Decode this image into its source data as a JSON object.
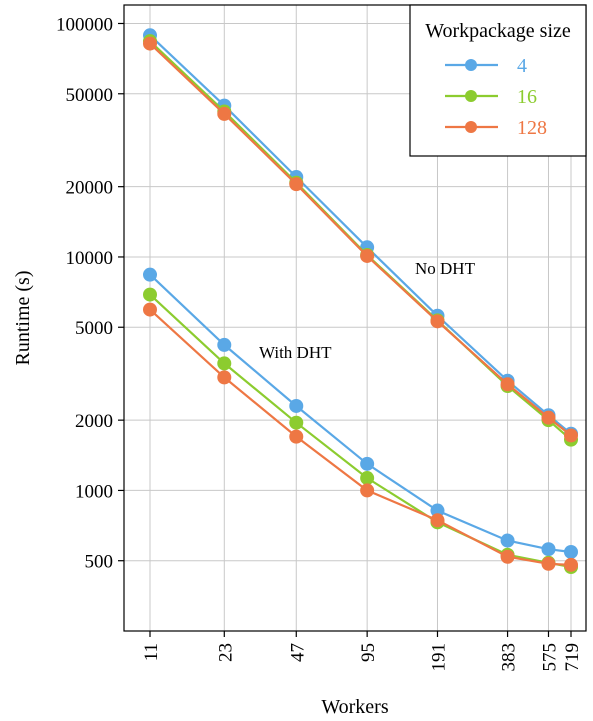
{
  "chart_data": {
    "type": "line",
    "xlabel": "Workers",
    "ylabel": "Runtime (s)",
    "x_scale": "log",
    "y_scale": "log",
    "grid": true,
    "x": [
      11,
      23,
      47,
      95,
      191,
      383,
      575,
      719
    ],
    "x_tick_labels": [
      "11",
      "23",
      "47",
      "95",
      "191",
      "383",
      "575",
      "719"
    ],
    "y_ticks": [
      500,
      1000,
      2000,
      5000,
      10000,
      20000,
      50000,
      100000
    ],
    "y_tick_labels": [
      "500",
      "1000",
      "2000",
      "5000",
      "10000",
      "20000",
      "50000",
      "100000"
    ],
    "ylim": [
      250,
      120000
    ],
    "legend": {
      "title": "Workpackage size",
      "position": "top-right",
      "entries": [
        "4",
        "16",
        "128"
      ]
    },
    "series": [
      {
        "name": "4",
        "group": "No DHT",
        "color": "#5aa8e6",
        "values": [
          89000,
          44500,
          22000,
          11000,
          5600,
          2950,
          2100,
          1750
        ]
      },
      {
        "name": "16",
        "group": "No DHT",
        "color": "#8ccc2f",
        "values": [
          84000,
          42000,
          20800,
          10200,
          5350,
          2800,
          2000,
          1650
        ]
      },
      {
        "name": "128",
        "group": "No DHT",
        "color": "#ee7744",
        "values": [
          82000,
          41000,
          20500,
          10100,
          5300,
          2850,
          2050,
          1720
        ]
      },
      {
        "name": "4",
        "group": "With DHT",
        "color": "#5aa8e6",
        "values": [
          8400,
          4200,
          2300,
          1300,
          820,
          610,
          560,
          545
        ]
      },
      {
        "name": "16",
        "group": "With DHT",
        "color": "#8ccc2f",
        "values": [
          6900,
          3500,
          1950,
          1130,
          730,
          530,
          490,
          470
        ]
      },
      {
        "name": "128",
        "group": "With DHT",
        "color": "#ee7744",
        "values": [
          5950,
          3050,
          1700,
          1000,
          745,
          520,
          485,
          480
        ]
      }
    ],
    "annotations": [
      "No DHT",
      "With DHT"
    ]
  }
}
